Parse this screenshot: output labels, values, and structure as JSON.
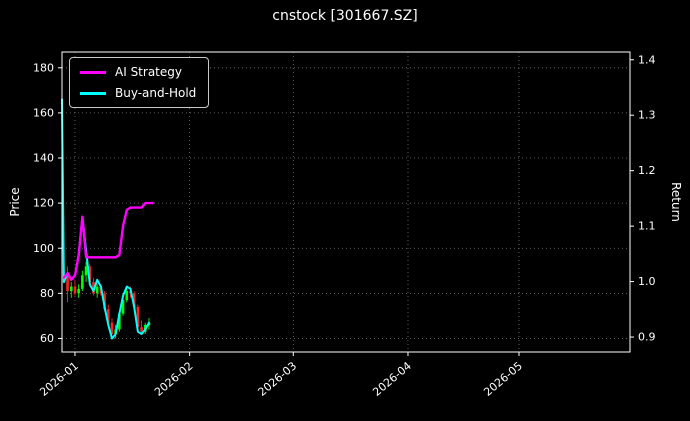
{
  "title": "cnstock [301667.SZ]",
  "legend": {
    "position": "upper left",
    "items": [
      {
        "label": "AI Strategy",
        "color": "#ff00ff"
      },
      {
        "label": "Buy-and-Hold",
        "color": "#00ffff"
      }
    ]
  },
  "axes": {
    "left_label": "Price",
    "right_label": "Return"
  },
  "colors": {
    "background": "#000000",
    "text": "#ffffff",
    "grid": "#787878",
    "frame": "#ffffff",
    "candle_up": "#00ff00",
    "candle_down": "#ff2222",
    "ai_strategy": "#ff00ff",
    "buy_and_hold": "#00ffff"
  },
  "chart_data": {
    "type": "line",
    "title": "cnstock [301667.SZ]",
    "subtitle": "",
    "legend_position": "upper left",
    "grid": "dotted",
    "x_axis": {
      "tick_labels": [
        "2026-01",
        "2026-02",
        "2026-03",
        "2026-04",
        "2026-05"
      ],
      "tick_days": [
        0,
        31,
        59,
        90,
        120
      ],
      "domain_days": [
        -3.5,
        150
      ],
      "note": "days relative to 2026-01-01; data only spans late Dec 2025 through ~2026-01-21"
    },
    "left_axis": {
      "label": "Price",
      "ticks": [
        60,
        80,
        100,
        120,
        140,
        160,
        180
      ],
      "ylim": [
        54,
        187
      ]
    },
    "right_axis": {
      "label": "Return",
      "ticks": [
        0.9,
        1.0,
        1.1,
        1.2,
        1.3,
        1.4
      ],
      "ylim": [
        0.873,
        1.414
      ]
    },
    "series": [
      {
        "name": "Buy-and-Hold",
        "color": "#00ffff",
        "width": 2,
        "units": "price-axis",
        "points": [
          [
            -3.5,
            166
          ],
          [
            -3,
            85
          ],
          [
            -2,
            89
          ],
          [
            -1,
            86
          ],
          [
            0,
            88
          ],
          [
            1,
            97
          ],
          [
            2,
            114
          ],
          [
            3,
            99
          ],
          [
            4,
            84
          ],
          [
            5,
            81
          ],
          [
            6,
            86
          ],
          [
            7,
            83
          ],
          [
            8,
            74
          ],
          [
            9,
            66
          ],
          [
            10,
            60
          ],
          [
            11,
            62
          ],
          [
            12,
            71
          ],
          [
            13,
            79
          ],
          [
            14,
            83
          ],
          [
            15,
            82
          ],
          [
            16,
            74
          ],
          [
            17,
            63
          ],
          [
            18,
            62
          ],
          [
            19,
            64
          ],
          [
            20,
            67
          ]
        ]
      },
      {
        "name": "AI Strategy",
        "color": "#ff00ff",
        "width": 2.4,
        "units": "price-axis",
        "points": [
          [
            -3,
            87
          ],
          [
            -2,
            89
          ],
          [
            -1,
            86
          ],
          [
            0,
            88
          ],
          [
            1,
            97
          ],
          [
            2,
            114
          ],
          [
            3,
            96
          ],
          [
            4,
            96
          ],
          [
            5,
            96
          ],
          [
            6,
            96
          ],
          [
            7,
            96
          ],
          [
            8,
            96
          ],
          [
            9,
            96
          ],
          [
            10,
            96
          ],
          [
            11,
            96
          ],
          [
            12,
            97
          ],
          [
            13,
            110
          ],
          [
            14,
            117
          ],
          [
            15,
            118
          ],
          [
            16,
            118
          ],
          [
            17,
            118
          ],
          [
            18,
            118
          ],
          [
            19,
            120
          ],
          [
            20,
            120
          ],
          [
            21,
            120
          ]
        ]
      }
    ],
    "candles": {
      "up_color": "#00ff00",
      "down_color": "#ff2222",
      "columns": [
        "day",
        "open",
        "high",
        "low",
        "close"
      ],
      "ohlc": [
        [
          -2,
          88,
          92,
          76,
          81
        ],
        [
          -1,
          81,
          85,
          78,
          83
        ],
        [
          0,
          83,
          86,
          79,
          80
        ],
        [
          1,
          80,
          84,
          78,
          82
        ],
        [
          2,
          82,
          90,
          81,
          88
        ],
        [
          3,
          88,
          94,
          85,
          92
        ],
        [
          4,
          92,
          93,
          83,
          85
        ],
        [
          5,
          85,
          87,
          79,
          80
        ],
        [
          6,
          80,
          84,
          78,
          83
        ],
        [
          7,
          83,
          84,
          79,
          80
        ],
        [
          8,
          80,
          81,
          72,
          73
        ],
        [
          9,
          73,
          75,
          66,
          67
        ],
        [
          10,
          67,
          69,
          61,
          62
        ],
        [
          11,
          62,
          66,
          60,
          64
        ],
        [
          12,
          64,
          72,
          63,
          71
        ],
        [
          13,
          71,
          78,
          70,
          77
        ],
        [
          14,
          77,
          82,
          76,
          81
        ],
        [
          15,
          81,
          83,
          78,
          80
        ],
        [
          16,
          80,
          81,
          72,
          74
        ],
        [
          17,
          74,
          75,
          64,
          65
        ],
        [
          18,
          65,
          68,
          62,
          63
        ],
        [
          19,
          63,
          67,
          62,
          66
        ],
        [
          20,
          66,
          69,
          64,
          67
        ]
      ]
    }
  }
}
